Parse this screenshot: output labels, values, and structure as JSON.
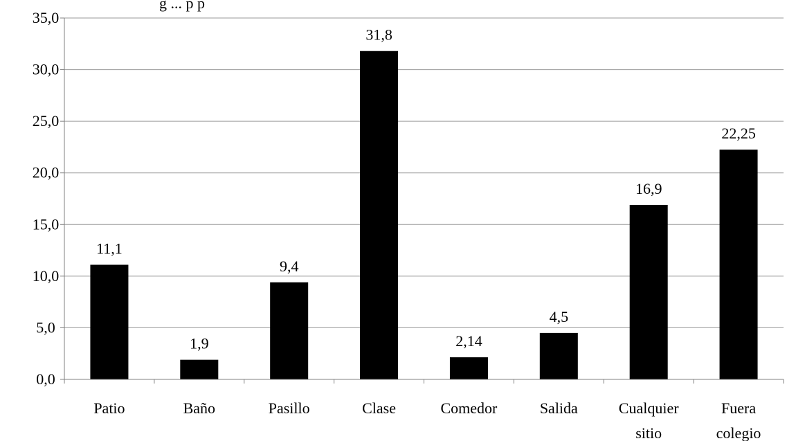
{
  "chart_data": {
    "type": "bar",
    "title": "g ... p p",
    "categories": [
      [
        "Patio"
      ],
      [
        "Baño"
      ],
      [
        "Pasillo"
      ],
      [
        "Clase"
      ],
      [
        "Comedor"
      ],
      [
        "Salida"
      ],
      [
        "Cualquier",
        "sitio"
      ],
      [
        "Fuera",
        "colegio"
      ]
    ],
    "values": [
      11.1,
      1.9,
      9.4,
      31.8,
      2.14,
      4.5,
      16.9,
      22.25
    ],
    "data_labels": [
      "11,1",
      "1,9",
      "9,4",
      "31,8",
      "2,14",
      "4,5",
      "16,9",
      "22,25"
    ],
    "ylim": [
      0,
      35
    ],
    "yticks": [
      0,
      5,
      10,
      15,
      20,
      25,
      30,
      35
    ],
    "ytick_labels": [
      "0,0",
      "5,0",
      "10,0",
      "15,0",
      "20,0",
      "25,0",
      "30,0",
      "35,0"
    ],
    "grid": "horizontal",
    "bar_color": "#000000",
    "grid_color": "#9a9a9a"
  }
}
